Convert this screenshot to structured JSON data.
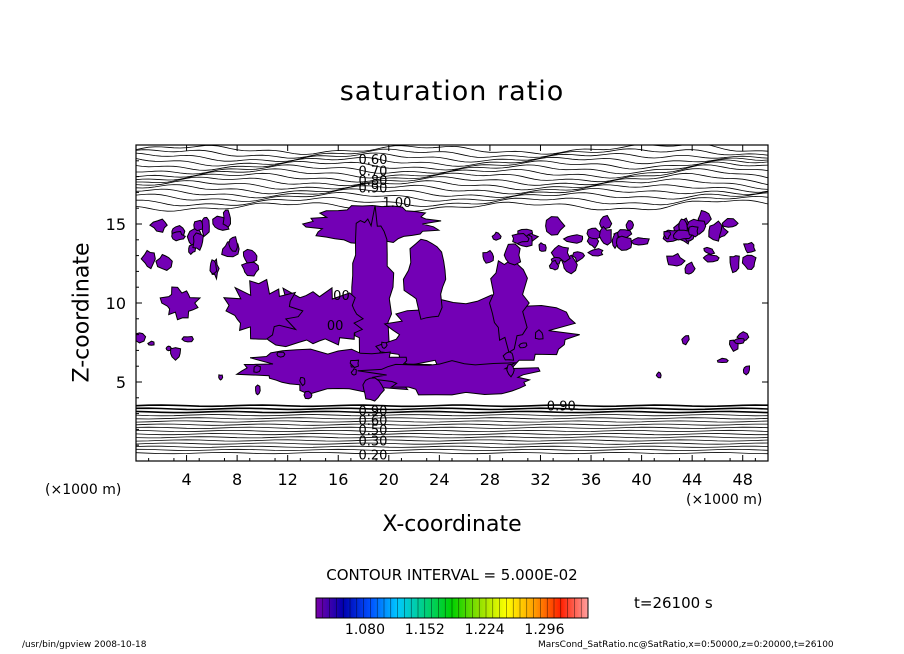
{
  "chart_data": {
    "type": "contour",
    "title": "saturation ratio",
    "xlabel": "X-coordinate",
    "ylabel": "Z-coordinate",
    "x_unit": "(×1000 m)",
    "y_unit": "(×1000 m)",
    "xlim": [
      0,
      50
    ],
    "ylim": [
      0,
      20
    ],
    "x_ticks": [
      4,
      8,
      12,
      16,
      20,
      24,
      28,
      32,
      36,
      40,
      44,
      48
    ],
    "y_ticks": [
      5,
      10,
      15
    ],
    "contour_labels_upper": [
      {
        "text": "0.60",
        "x": 17.6,
        "z": 19.1
      },
      {
        "text": "0.70",
        "x": 17.6,
        "z": 18.4
      },
      {
        "text": "0.80",
        "x": 17.6,
        "z": 17.8
      },
      {
        "text": "0.90",
        "x": 17.6,
        "z": 17.3
      },
      {
        "text": "1.00",
        "x": 19.5,
        "z": 16.4
      }
    ],
    "contour_labels_lower": [
      {
        "text": "0.90",
        "x": 17.6,
        "z": 3.2
      },
      {
        "text": "0.90",
        "x": 32.5,
        "z": 3.5
      },
      {
        "text": "0.60",
        "x": 17.6,
        "z": 2.6
      },
      {
        "text": "0.50",
        "x": 17.6,
        "z": 2.0
      },
      {
        "text": "0.30",
        "x": 17.6,
        "z": 1.3
      },
      {
        "text": "0.20",
        "x": 17.6,
        "z": 0.4
      }
    ],
    "interior_labels": [
      {
        "text": "00",
        "x": 15.1,
        "z": 8.6
      },
      {
        "text": "00",
        "x": 15.6,
        "z": 10.5
      }
    ],
    "contour_interval_label": "CONTOUR INTERVAL = 5.000E-02",
    "time_label": "t=26100 s",
    "colorbar_labels": [
      "1.080",
      "1.152",
      "1.224",
      "1.296"
    ],
    "colorbar_colors": [
      "#7a00a8",
      "#0000b0",
      "#0050ff",
      "#00c8ff",
      "#00d080",
      "#00d000",
      "#90e000",
      "#ffff00",
      "#ffa000",
      "#ff2000",
      "#ffa0a0"
    ],
    "fill_color": "#7300b5"
  },
  "footer": {
    "left": "/usr/bin/gpview   2008-10-18",
    "right": "MarsCond_SatRatio.nc@SatRatio,x=0:50000,z=0:20000,t=26100"
  }
}
